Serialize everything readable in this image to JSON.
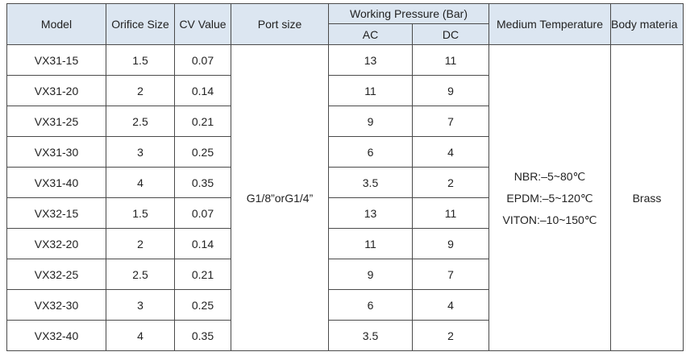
{
  "header": {
    "model": "Model",
    "orifice_size": "Orifice Size",
    "cv_value": "CV Value",
    "port_size": "Port size",
    "working_pressure": "Working Pressure (Bar)",
    "ac": "AC",
    "dc": "DC",
    "medium_temperature": "Medium Temperature",
    "body_material": "Body materia"
  },
  "rows": [
    {
      "model": "VX31-15",
      "orifice": "1.5",
      "cv": "0.07",
      "ac": "13",
      "dc": "11"
    },
    {
      "model": "VX31-20",
      "orifice": "2",
      "cv": "0.14",
      "ac": "11",
      "dc": "9"
    },
    {
      "model": "VX31-25",
      "orifice": "2.5",
      "cv": "0.21",
      "ac": "9",
      "dc": "7"
    },
    {
      "model": "VX31-30",
      "orifice": "3",
      "cv": "0.25",
      "ac": "6",
      "dc": "4"
    },
    {
      "model": "VX31-40",
      "orifice": "4",
      "cv": "0.35",
      "ac": "3.5",
      "dc": "2"
    },
    {
      "model": "VX32-15",
      "orifice": "1.5",
      "cv": "0.07",
      "ac": "13",
      "dc": "11"
    },
    {
      "model": "VX32-20",
      "orifice": "2",
      "cv": "0.14",
      "ac": "11",
      "dc": "9"
    },
    {
      "model": "VX32-25",
      "orifice": "2.5",
      "cv": "0.21",
      "ac": "9",
      "dc": "7"
    },
    {
      "model": "VX32-30",
      "orifice": "3",
      "cv": "0.25",
      "ac": "6",
      "dc": "4"
    },
    {
      "model": "VX32-40",
      "orifice": "4",
      "cv": "0.35",
      "ac": "3.5",
      "dc": "2"
    }
  ],
  "port_size": "G1/8”orG1/4”",
  "medium_temperature": [
    "NBR:–5~80℃",
    "EPDM:–5~120℃",
    "VITON:–10~150℃"
  ],
  "body_material": "Brass",
  "colors": {
    "header_bg": "#dce6f1",
    "border": "#4a4a4a",
    "text": "#222222"
  }
}
